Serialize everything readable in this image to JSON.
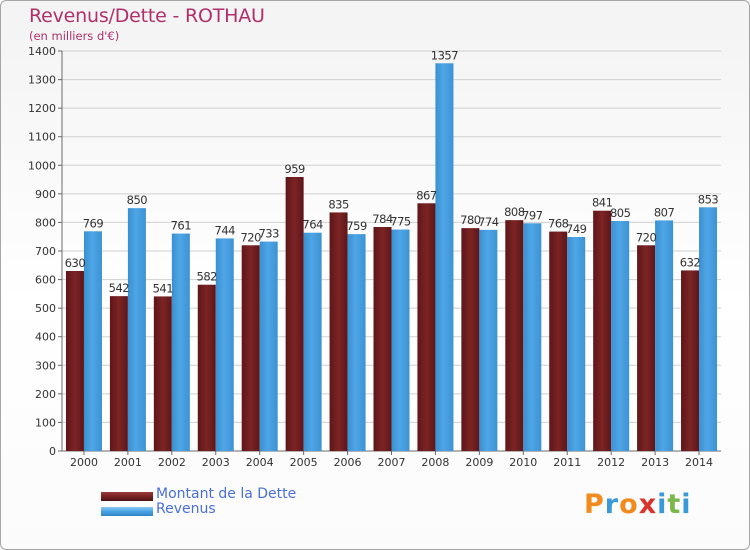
{
  "title": "Revenus/Dette - ROTHAU",
  "subtitle": "(en milliers d'€)",
  "legend": [
    "Montant de la Dette",
    "Revenus"
  ],
  "logo": {
    "letters": [
      "P",
      "r",
      "o",
      "x",
      "i",
      "t",
      "i"
    ],
    "colors": [
      "#f28a1e",
      "#3a9ad9",
      "#f28a1e",
      "#d8342c",
      "#3a9ad9",
      "#7bb84a",
      "#3a9ad9"
    ]
  },
  "colors": {
    "dette": "#7c2425",
    "revenus": "#4ea6e6"
  },
  "chart_data": {
    "type": "bar",
    "title": "Revenus/Dette - ROTHAU",
    "subtitle": "(en milliers d'€)",
    "categories": [
      "2000",
      "2001",
      "2002",
      "2003",
      "2004",
      "2005",
      "2006",
      "2007",
      "2008",
      "2009",
      "2010",
      "2011",
      "2012",
      "2013",
      "2014"
    ],
    "series": [
      {
        "name": "Montant de la Dette",
        "values": [
          630,
          542,
          541,
          582,
          720,
          959,
          835,
          784,
          867,
          780,
          808,
          768,
          841,
          720,
          632
        ]
      },
      {
        "name": "Revenus",
        "values": [
          769,
          850,
          761,
          744,
          733,
          764,
          759,
          775,
          1357,
          774,
          797,
          749,
          805,
          807,
          853
        ]
      }
    ],
    "ylim": [
      0,
      1400
    ],
    "yticks": [
      0,
      100,
      200,
      300,
      400,
      500,
      600,
      700,
      800,
      900,
      1000,
      1100,
      1200,
      1300,
      1400
    ],
    "grid": true,
    "legend_position": "bottom-left"
  }
}
